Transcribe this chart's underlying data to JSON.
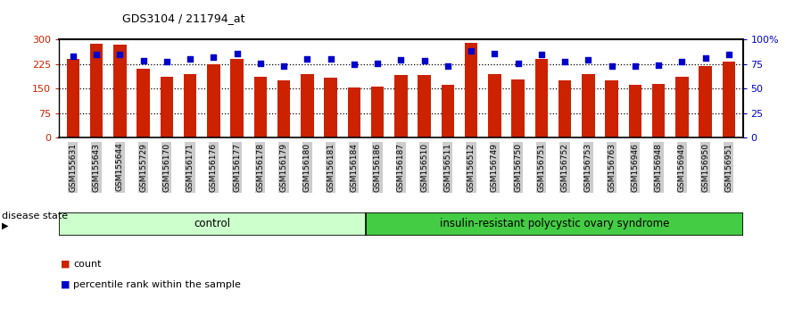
{
  "title": "GDS3104 / 211794_at",
  "samples": [
    "GSM155631",
    "GSM155643",
    "GSM155644",
    "GSM155729",
    "GSM156170",
    "GSM156171",
    "GSM156176",
    "GSM156177",
    "GSM156178",
    "GSM156179",
    "GSM156180",
    "GSM156181",
    "GSM156184",
    "GSM156186",
    "GSM156187",
    "GSM156510",
    "GSM156511",
    "GSM156512",
    "GSM156749",
    "GSM156750",
    "GSM156751",
    "GSM156752",
    "GSM156753",
    "GSM156763",
    "GSM156946",
    "GSM156948",
    "GSM156949",
    "GSM156950",
    "GSM156951"
  ],
  "bar_values": [
    240,
    287,
    285,
    210,
    185,
    195,
    225,
    240,
    185,
    175,
    193,
    182,
    153,
    155,
    190,
    190,
    160,
    290,
    195,
    178,
    240,
    175,
    195,
    175,
    162,
    163,
    185,
    218,
    232
  ],
  "percentile_values": [
    83,
    85,
    85,
    78,
    77,
    80,
    82,
    86,
    76,
    73,
    80,
    80,
    75,
    76,
    79,
    78,
    73,
    88,
    86,
    76,
    85,
    77,
    79,
    73,
    73,
    74,
    77,
    81,
    85
  ],
  "control_count": 13,
  "disease_count": 16,
  "control_label": "control",
  "disease_label": "insulin-resistant polycystic ovary syndrome",
  "disease_state_label": "disease state",
  "bar_color": "#CC2200",
  "percentile_color": "#0000CC",
  "control_bg": "#CCFFCC",
  "disease_bg": "#44CC44",
  "ylim_left": [
    0,
    300
  ],
  "ylim_right": [
    0,
    100
  ],
  "yticks_left": [
    0,
    75,
    150,
    225,
    300
  ],
  "yticks_right": [
    0,
    25,
    50,
    75,
    100
  ],
  "ytick_labels_right": [
    "0",
    "25",
    "50",
    "75",
    "100%"
  ],
  "grid_lines": [
    75,
    150,
    225
  ],
  "background_color": "#FFFFFF",
  "legend_count_label": "count",
  "legend_pct_label": "percentile rank within the sample",
  "tick_bg_color": "#CCCCCC"
}
